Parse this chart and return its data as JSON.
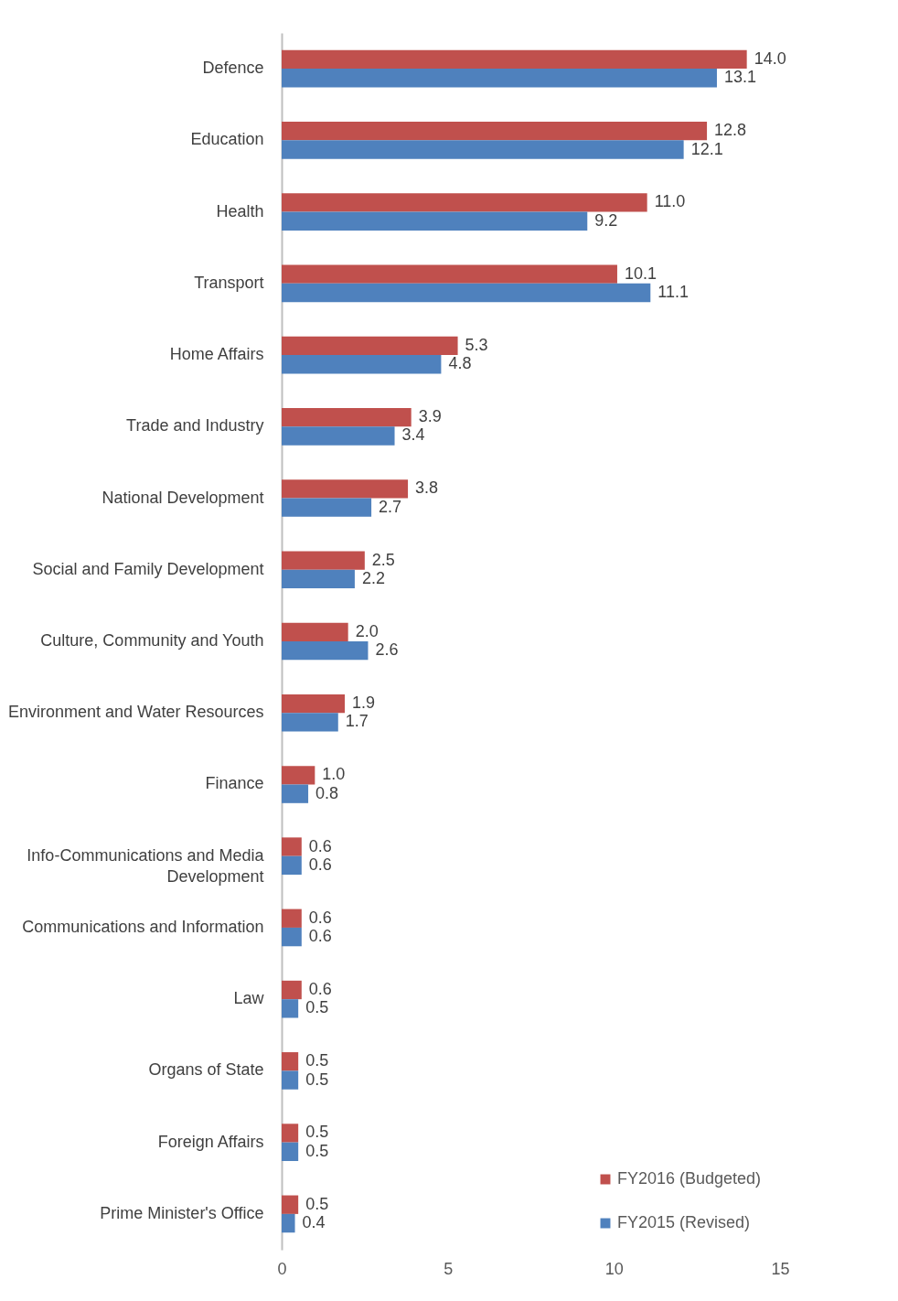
{
  "chart_data": {
    "type": "bar",
    "orientation": "horizontal",
    "categories": [
      "Defence",
      "Education",
      "Health",
      "Transport",
      "Home Affairs",
      "Trade and Industry",
      "National Development",
      "Social and Family Development",
      "Culture, Community and Youth",
      "Environment and Water Resources",
      "Finance",
      "Info-Communications and Media Development",
      "Communications and Information",
      "Law",
      "Organs of State",
      "Foreign Affairs",
      "Prime Minister's Office"
    ],
    "series": [
      {
        "name": "FY2016 (Budgeted)",
        "color": "#c0504d",
        "values": [
          14.0,
          12.8,
          11.0,
          10.1,
          5.3,
          3.9,
          3.8,
          2.5,
          2.0,
          1.9,
          1.0,
          0.6,
          0.6,
          0.6,
          0.5,
          0.5,
          0.5
        ],
        "value_labels": [
          "14.0",
          "12.8",
          "11.0",
          "10.1",
          "5.3",
          "3.9",
          "3.8",
          "2.5",
          "2.0",
          "1.9",
          "1.0",
          "0.6",
          "0.6",
          "0.6",
          "0.5",
          "0.5",
          "0.5"
        ]
      },
      {
        "name": "FY2015 (Revised)",
        "color": "#4f81bd",
        "values": [
          13.1,
          12.1,
          9.2,
          11.1,
          4.8,
          3.4,
          2.7,
          2.2,
          2.6,
          1.7,
          0.8,
          0.6,
          0.6,
          0.5,
          0.5,
          0.5,
          0.4
        ],
        "value_labels": [
          "13.1",
          "12.1",
          "9.2",
          "11.1",
          "4.8",
          "3.4",
          "2.7",
          "2.2",
          "2.6",
          "1.7",
          "0.8",
          "0.6",
          "0.6",
          "0.5",
          "0.5",
          "0.5",
          "0.4"
        ]
      }
    ],
    "xlim": [
      0,
      15
    ],
    "xticks": [
      0,
      5,
      10,
      15
    ],
    "grid": false,
    "legend": "bottom right"
  }
}
